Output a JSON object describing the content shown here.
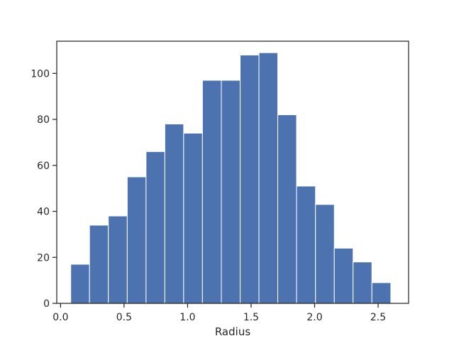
{
  "chart_data": {
    "type": "bar",
    "subtype": "histogram",
    "title": "",
    "xlabel": "Radius",
    "ylabel": "",
    "xlim": [
      -0.03,
      2.74
    ],
    "ylim": [
      0,
      114
    ],
    "xticks": [
      0.0,
      0.5,
      1.0,
      1.5,
      2.0,
      2.5
    ],
    "xtick_labels": [
      "0.0",
      "0.5",
      "1.0",
      "1.5",
      "2.0",
      "2.5"
    ],
    "yticks": [
      0,
      20,
      40,
      60,
      80,
      100
    ],
    "ytick_labels": [
      "0",
      "20",
      "40",
      "60",
      "80",
      "100"
    ],
    "bin_edges": [
      0.08,
      0.228,
      0.376,
      0.525,
      0.673,
      0.821,
      0.969,
      1.117,
      1.266,
      1.414,
      1.562,
      1.71,
      1.858,
      2.007,
      2.155,
      2.303,
      2.451,
      2.6
    ],
    "values": [
      17,
      34,
      38,
      55,
      66,
      78,
      74,
      97,
      97,
      108,
      109,
      82,
      51,
      43,
      24,
      18,
      9
    ],
    "bar_color": "#4c72b0",
    "edge_color": "#ffffff",
    "grid": false,
    "legend": "none"
  }
}
